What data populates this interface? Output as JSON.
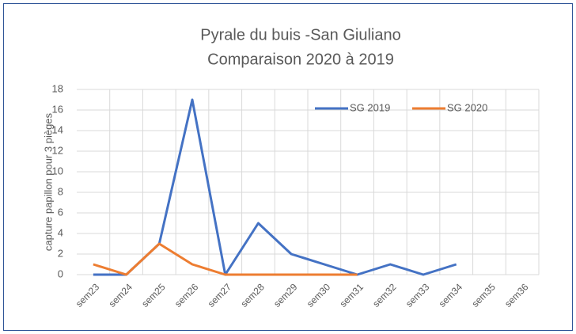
{
  "chart_data": {
    "type": "line",
    "title": "Pyrale du buis -San Giuliano",
    "subtitle": "Comparaison  2020 à 2019",
    "y_label": "capture papillon  pour 3 pièges",
    "categories": [
      "sem23",
      "sem24",
      "sem25",
      "sem26",
      "sem27",
      "sem28",
      "sem29",
      "sem30",
      "sem31",
      "sem32",
      "sem33",
      "sem34",
      "sem35",
      "sem36"
    ],
    "series": [
      {
        "name": "SG 2019",
        "color": "#4472c4",
        "values": [
          0,
          0,
          3,
          17,
          0,
          5,
          2,
          1,
          0,
          1,
          0,
          1,
          null,
          null
        ]
      },
      {
        "name": "SG 2020",
        "color": "#ed7d31",
        "values": [
          1,
          0,
          3,
          1,
          0,
          0,
          0,
          0,
          0,
          null,
          null,
          null,
          null,
          null
        ]
      }
    ],
    "ylim": [
      0,
      18
    ],
    "yticks": [
      0,
      2,
      4,
      6,
      8,
      10,
      12,
      14,
      16,
      18
    ],
    "grid": true,
    "legend": "top-right"
  }
}
